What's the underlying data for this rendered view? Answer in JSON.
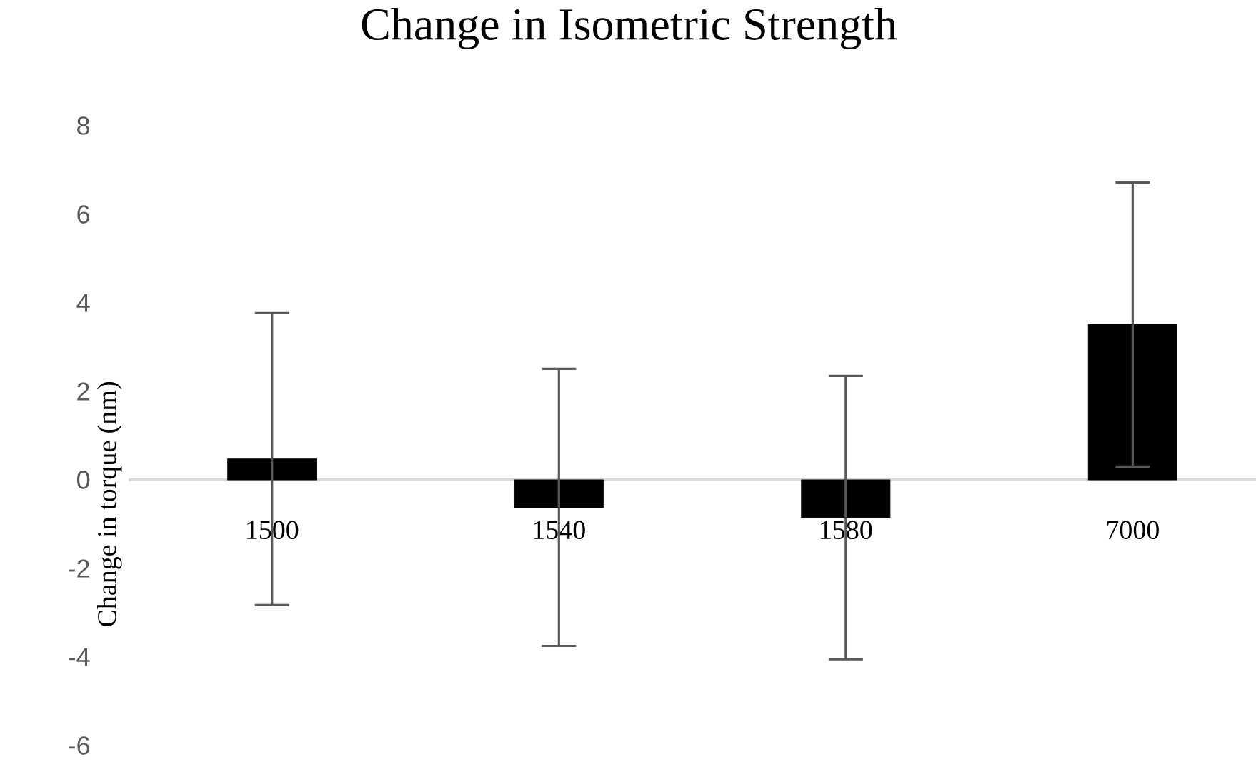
{
  "chart_data": {
    "type": "bar",
    "title": "Change in Isometric Strength",
    "ylabel": "Change in torque (nm)",
    "categories": [
      "1500",
      "1540",
      "1580",
      "7000"
    ],
    "values": [
      0.47,
      -0.62,
      -0.85,
      3.51
    ],
    "errors": [
      3.3,
      3.13,
      3.2,
      3.21
    ],
    "color": "#000000",
    "ylim": [
      -6,
      8
    ],
    "yticks": [
      -6,
      -4,
      -2,
      0,
      2,
      4,
      6,
      8
    ],
    "grid": false
  }
}
